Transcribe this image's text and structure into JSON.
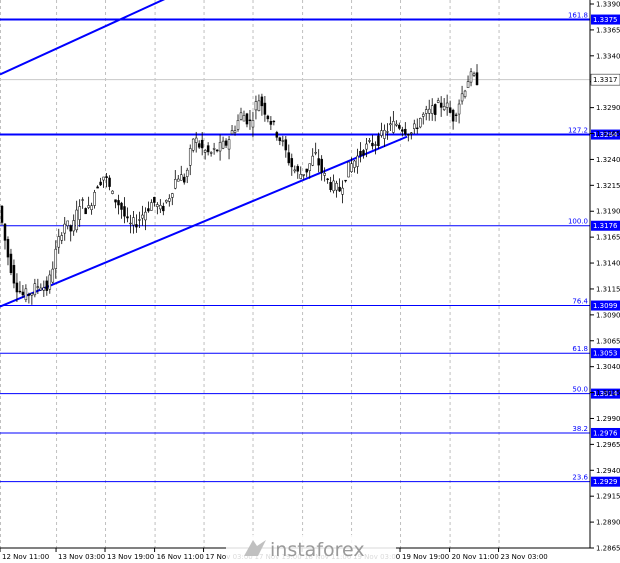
{
  "chart_data": {
    "type": "candlestick",
    "instrument": "GBP/USD",
    "timeframe": "H1",
    "ylim": [
      1.2865,
      1.339
    ],
    "y_tick_labels": [
      "1.3390",
      "1.3365",
      "1.3340",
      "1.3315",
      "1.3290",
      "1.3265",
      "1.3240",
      "1.3215",
      "1.3190",
      "1.3165",
      "1.3140",
      "1.3115",
      "1.3090",
      "1.3065",
      "1.3040",
      "1.3015",
      "1.2990",
      "1.2965",
      "1.2940",
      "1.2915",
      "1.2890",
      "1.2865"
    ],
    "y_ticks": [
      1.339,
      1.3365,
      1.334,
      1.3315,
      1.329,
      1.3265,
      1.324,
      1.3215,
      1.319,
      1.3165,
      1.314,
      1.3115,
      1.309,
      1.3065,
      1.304,
      1.3015,
      1.299,
      1.2965,
      1.294,
      1.2915,
      1.289,
      1.2865
    ],
    "x_tick_labels": [
      "12 Nov 11:00",
      "13 Nov 03:00",
      "13 Nov 19:00",
      "16 Nov 11:00",
      "17 Nov 03:00",
      "17 Nov 19:00",
      "18 Nov 11:00",
      "19 Nov 03:00",
      "19 Nov 19:00",
      "20 Nov 11:00",
      "23 Nov 03:00"
    ],
    "x_tick_fracs": [
      0.0,
      0.095,
      0.178,
      0.262,
      0.345,
      0.428,
      0.512,
      0.595,
      0.678,
      0.762,
      0.845
    ],
    "current_price": "1.3317",
    "current_value": 1.3317,
    "fib_levels": [
      {
        "ratio": "161.8",
        "price": "1.3375",
        "value": 1.3375
      },
      {
        "ratio": "127.2",
        "price": "1.3264",
        "value": 1.3264
      },
      {
        "ratio": "100.0",
        "price": "1.3176",
        "value": 1.3176
      },
      {
        "ratio": "76.4",
        "price": "1.3099",
        "value": 1.3099
      },
      {
        "ratio": "61.8",
        "price": "1.3053",
        "value": 1.3053
      },
      {
        "ratio": "50.0",
        "price": "1.3014",
        "value": 1.3014
      },
      {
        "ratio": "38.2",
        "price": "1.2976",
        "value": 1.2976
      },
      {
        "ratio": "23.6",
        "price": "1.2929",
        "value": 1.2929
      }
    ],
    "trend_lines": [
      {
        "x_frac": [
          0.0,
          0.28
        ],
        "y": [
          1.3322,
          1.3395
        ]
      },
      {
        "x_frac": [
          0.0,
          0.69
        ],
        "y": [
          1.3098,
          1.3262
        ]
      }
    ],
    "price_path": [
      1.3195,
      1.315,
      1.312,
      1.3108,
      1.3112,
      1.312,
      1.3115,
      1.315,
      1.318,
      1.317,
      1.32,
      1.319,
      1.3215,
      1.3225,
      1.3205,
      1.3195,
      1.3175,
      1.318,
      1.319,
      1.32,
      1.319,
      1.3205,
      1.3225,
      1.322,
      1.3262,
      1.325,
      1.3245,
      1.325,
      1.3255,
      1.327,
      1.3285,
      1.3275,
      1.33,
      1.3285,
      1.327,
      1.3255,
      1.3235,
      1.3225,
      1.323,
      1.3245,
      1.3225,
      1.3215,
      1.321,
      1.323,
      1.324,
      1.325,
      1.3255,
      1.326,
      1.327,
      1.3275,
      1.327,
      1.3265,
      1.328,
      1.3285,
      1.329,
      1.3295,
      1.328,
      1.33,
      1.332,
      1.3317
    ]
  },
  "watermark": "instaforex"
}
